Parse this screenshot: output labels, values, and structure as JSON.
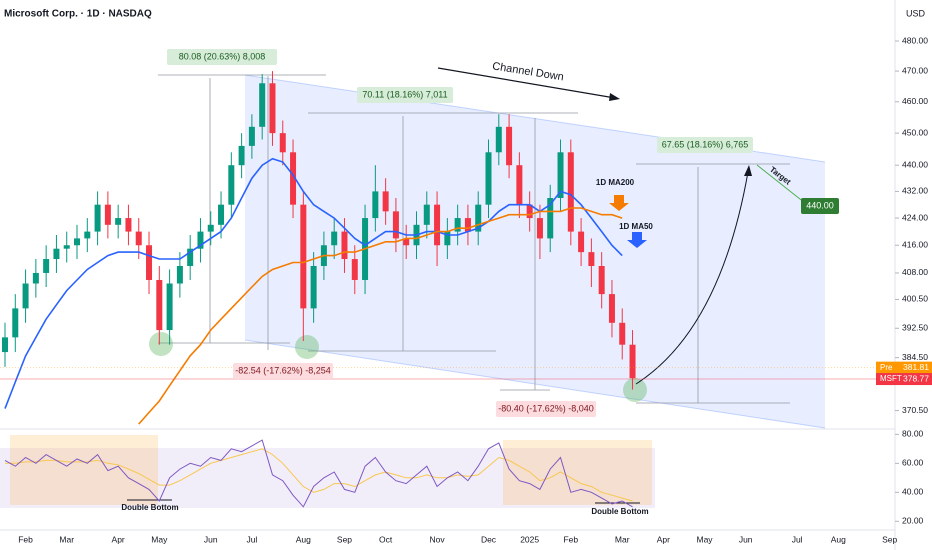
{
  "chart_data": {
    "type": "candlestick",
    "title": "Microsoft Corp. · 1D · NASDAQ",
    "currency": "USD",
    "log_scale": true,
    "up_color": "#089981",
    "down_color": "#f23645",
    "categories": [
      null,
      null,
      "Feb",
      null,
      null,
      null,
      "Mar",
      null,
      null,
      null,
      null,
      "Apr",
      null,
      null,
      null,
      "May",
      null,
      null,
      null,
      null,
      "Jun",
      null,
      null,
      null,
      "Jul",
      null,
      null,
      null,
      null,
      "Aug",
      null,
      null,
      null,
      "Sep",
      null,
      null,
      null,
      "Oct",
      null,
      null,
      null,
      null,
      "Nov",
      null,
      null,
      null,
      null,
      "Dec",
      null,
      null,
      null,
      "2025",
      null,
      null,
      null,
      "Feb",
      null,
      null,
      null,
      null,
      "Mar",
      null,
      null,
      null,
      "Apr",
      null,
      null,
      null,
      "May",
      null,
      null,
      null,
      "Jun",
      null,
      null,
      null,
      null,
      "Jul",
      null,
      null,
      null,
      "Aug",
      null,
      null,
      null,
      null,
      "Sep"
    ],
    "ohlc": [
      [
        386,
        394,
        382,
        390
      ],
      [
        390,
        402,
        386,
        398
      ],
      [
        398,
        409,
        394,
        405
      ],
      [
        405,
        412,
        401,
        408
      ],
      [
        408,
        416,
        404,
        412
      ],
      [
        412,
        419,
        408,
        415
      ],
      [
        415,
        420,
        411,
        416
      ],
      [
        416,
        422,
        412,
        418
      ],
      [
        418,
        424,
        414,
        420
      ],
      [
        420,
        432,
        416,
        428
      ],
      [
        428,
        432,
        418,
        422
      ],
      [
        422,
        428,
        418,
        424
      ],
      [
        424,
        428,
        416,
        420
      ],
      [
        420,
        424,
        412,
        416
      ],
      [
        416,
        420,
        402,
        406
      ],
      [
        406,
        410,
        388,
        392
      ],
      [
        392,
        409,
        388,
        405
      ],
      [
        405,
        414,
        401,
        410
      ],
      [
        410,
        419,
        406,
        415
      ],
      [
        415,
        424,
        411,
        420
      ],
      [
        420,
        426,
        416,
        422
      ],
      [
        422,
        432,
        418,
        428
      ],
      [
        428,
        444,
        424,
        440
      ],
      [
        440,
        450,
        436,
        446
      ],
      [
        446,
        456,
        442,
        452
      ],
      [
        452,
        469,
        448,
        466
      ],
      [
        466,
        470,
        446,
        450
      ],
      [
        450,
        454,
        440,
        444
      ],
      [
        444,
        448,
        424,
        428
      ],
      [
        428,
        432,
        389,
        398
      ],
      [
        398,
        414,
        394,
        410
      ],
      [
        410,
        420,
        406,
        416
      ],
      [
        416,
        424,
        412,
        420
      ],
      [
        420,
        424,
        408,
        412
      ],
      [
        412,
        416,
        402,
        406
      ],
      [
        406,
        428,
        402,
        424
      ],
      [
        424,
        440,
        420,
        432
      ],
      [
        432,
        436,
        422,
        426
      ],
      [
        426,
        430,
        414,
        418
      ],
      [
        418,
        422,
        412,
        416
      ],
      [
        416,
        426,
        412,
        422
      ],
      [
        422,
        432,
        418,
        428
      ],
      [
        428,
        432,
        410,
        416
      ],
      [
        416,
        424,
        412,
        420
      ],
      [
        420,
        428,
        416,
        424
      ],
      [
        424,
        428,
        416,
        420
      ],
      [
        420,
        432,
        416,
        428
      ],
      [
        428,
        448,
        424,
        444
      ],
      [
        444,
        456,
        440,
        452
      ],
      [
        452,
        456,
        436,
        440
      ],
      [
        440,
        444,
        424,
        428
      ],
      [
        428,
        432,
        420,
        424
      ],
      [
        424,
        428,
        412,
        418
      ],
      [
        418,
        434,
        414,
        430
      ],
      [
        430,
        448,
        426,
        444
      ],
      [
        444,
        448,
        416,
        420
      ],
      [
        420,
        424,
        410,
        414
      ],
      [
        414,
        418,
        404,
        410
      ],
      [
        410,
        414,
        398,
        402
      ],
      [
        402,
        406,
        390,
        394
      ],
      [
        394,
        398,
        384,
        388
      ],
      [
        388,
        392,
        376,
        379
      ],
      null,
      null,
      null,
      null,
      null,
      null,
      null,
      null,
      null,
      null,
      null,
      null,
      null,
      null,
      null,
      null,
      null,
      null,
      null,
      null,
      null,
      null,
      null,
      null,
      null
    ],
    "series": [
      {
        "name": "1D MA50",
        "color": "#2962ff",
        "values": [
          371,
          378,
          385,
          390,
          395,
          399,
          403,
          406,
          409,
          411,
          413,
          414,
          414,
          414,
          413,
          412,
          412,
          412,
          414,
          416,
          418,
          420,
          424,
          430,
          436,
          440,
          442,
          441,
          437,
          432,
          428,
          426,
          424,
          421,
          418,
          416,
          418,
          420,
          420,
          419,
          419,
          420,
          420,
          419,
          419,
          420,
          421,
          423,
          426,
          428,
          428,
          428,
          426,
          428,
          432,
          431,
          428,
          424,
          420,
          416,
          413,
          null,
          null,
          null,
          null,
          null,
          null,
          null,
          null,
          null,
          null,
          null,
          null,
          null,
          null,
          null,
          null,
          null,
          null,
          null,
          null,
          null,
          null,
          null,
          null,
          null,
          null
        ]
      },
      {
        "name": "1D MA200",
        "color": "#f57c00",
        "values": [
          null,
          null,
          null,
          null,
          null,
          null,
          null,
          null,
          null,
          null,
          null,
          null,
          null,
          367,
          370,
          373,
          377,
          381,
          385,
          388,
          392,
          395,
          398,
          401,
          404,
          407,
          409,
          410,
          411,
          411,
          412,
          413,
          413,
          414,
          414,
          415,
          416,
          417,
          417,
          418,
          418,
          419,
          420,
          420,
          421,
          421,
          422,
          423,
          424,
          425,
          425,
          425,
          426,
          426,
          426,
          427,
          427,
          426,
          425,
          425,
          424,
          null,
          null,
          null,
          null,
          null,
          null,
          null,
          null,
          null,
          null,
          null,
          null,
          null,
          null,
          null,
          null,
          null,
          null,
          null,
          null,
          null,
          null,
          null,
          null,
          null,
          null
        ]
      }
    ],
    "ylim": [
      366,
      494
    ],
    "yticks": [
      {
        "value": 480,
        "label": "480.00"
      },
      {
        "value": 470,
        "label": "470.00"
      },
      {
        "value": 460,
        "label": "460.00"
      },
      {
        "value": 450,
        "label": "450.00"
      },
      {
        "value": 440,
        "label": "440.00"
      },
      {
        "value": 432,
        "label": "432.00"
      },
      {
        "value": 424,
        "label": "424.00"
      },
      {
        "value": 416,
        "label": "416.00"
      },
      {
        "value": 408,
        "label": "408.00"
      },
      {
        "value": 400.5,
        "label": "400.50"
      },
      {
        "value": 392.5,
        "label": "392.50"
      },
      {
        "value": 384.5,
        "label": "384.50"
      },
      {
        "value": 370.5,
        "label": "370.50"
      }
    ],
    "price_labels": [
      {
        "name": "Pre",
        "value": 381.81,
        "color": "#ff9800"
      },
      {
        "name": "MSFT",
        "value": 378.77,
        "color": "#f23645"
      }
    ],
    "annotations": [
      "80.08 (20.63%) 8,008",
      "70.11 (18.16%) 7,011",
      "67.65 (18.16%) 6,765",
      "-82.54 (-17.62%) -8,254",
      "-80.40 (-17.62%) -8,040",
      "Channel Down",
      "1D MA200",
      "1D MA50",
      "Target",
      "440.00",
      "Double Bottom",
      "Double Bottom"
    ],
    "rsi": {
      "color": "#7e57c2",
      "ma_color": "#f9c74f",
      "values": [
        62,
        58,
        64,
        60,
        66,
        62,
        58,
        63,
        60,
        66,
        55,
        58,
        50,
        46,
        42,
        34,
        50,
        56,
        60,
        58,
        64,
        62,
        70,
        68,
        72,
        76,
        52,
        48,
        38,
        30,
        44,
        50,
        54,
        42,
        40,
        58,
        64,
        54,
        48,
        46,
        52,
        58,
        44,
        50,
        54,
        48,
        58,
        70,
        74,
        56,
        48,
        46,
        42,
        56,
        64,
        40,
        42,
        40,
        36,
        32,
        34,
        30,
        null,
        null,
        null,
        null,
        null,
        null,
        null,
        null,
        null,
        null,
        null,
        null,
        null,
        null,
        null,
        null,
        null,
        null,
        null,
        null,
        null,
        null,
        null,
        null,
        null
      ],
      "ma": [
        60,
        60,
        61,
        61,
        62,
        62,
        61,
        61,
        61,
        62,
        60,
        59,
        56,
        53,
        49,
        45,
        45,
        48,
        52,
        56,
        60,
        62,
        64,
        66,
        68,
        70,
        66,
        60,
        52,
        44,
        40,
        42,
        46,
        46,
        44,
        48,
        52,
        54,
        52,
        50,
        50,
        52,
        50,
        50,
        52,
        51,
        52,
        58,
        64,
        62,
        58,
        54,
        48,
        50,
        54,
        50,
        46,
        44,
        40,
        38,
        36,
        34,
        null,
        null,
        null,
        null,
        null,
        null,
        null,
        null,
        null,
        null,
        null,
        null,
        null,
        null,
        null,
        null,
        null,
        null,
        null,
        null,
        null,
        null,
        null,
        null,
        null
      ],
      "ylim": [
        14,
        83
      ],
      "yticks": [
        {
          "value": 80,
          "label": "80.00"
        },
        {
          "value": 60,
          "label": "60.00"
        },
        {
          "value": 40,
          "label": "40.00"
        },
        {
          "value": 20,
          "label": "20.00"
        }
      ]
    }
  }
}
